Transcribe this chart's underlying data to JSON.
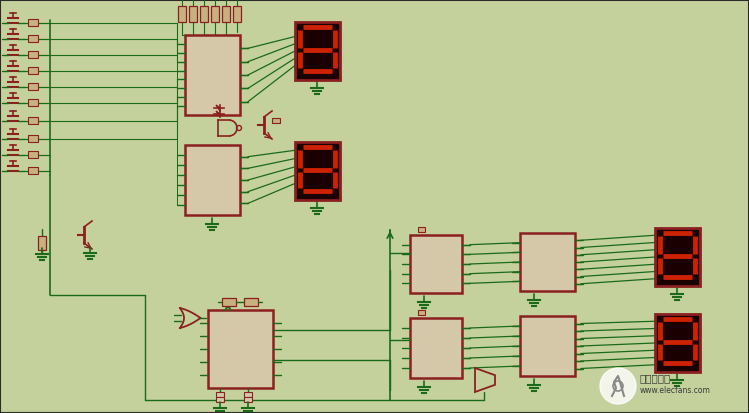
{
  "bg_color": "#c5d19c",
  "grid_color": "#b5c18c",
  "wire_color": "#1a6a1a",
  "component_fill": "#d4c8a8",
  "component_border": "#8b2020",
  "seg_display_bg": "#1a0000",
  "seg_display_border": "#8b2020",
  "seg_on_color": "#cc2200",
  "seg_off_color": "#3a0000",
  "watermark_text1": "电子发烧友",
  "watermark_text2": "www.elecfans.com",
  "fig_width": 7.49,
  "fig_height": 4.13,
  "dpi": 100
}
